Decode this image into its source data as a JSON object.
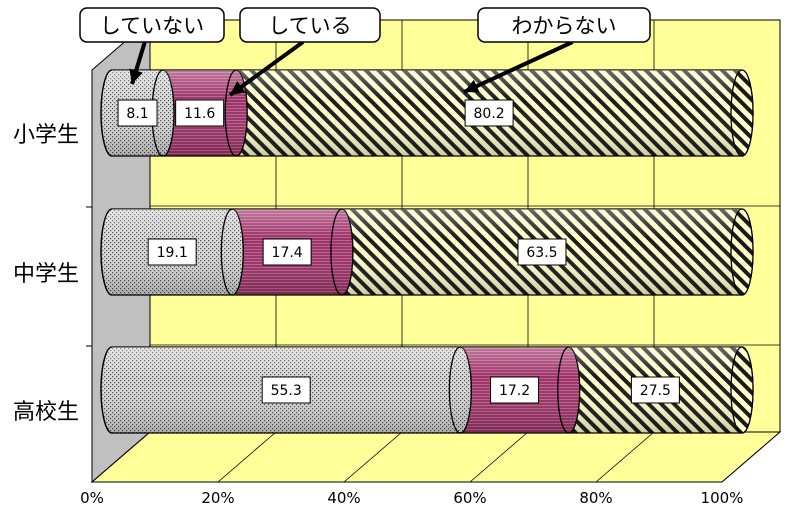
{
  "chart_data": {
    "type": "bar",
    "orientation": "horizontal",
    "stacked": true,
    "percent_stacked": true,
    "three_d": true,
    "categories": [
      "小学生",
      "中学生",
      "高校生"
    ],
    "series": [
      {
        "name": "していない",
        "values": [
          8.1,
          19.1,
          55.3
        ],
        "color": "#d4d4d4",
        "pattern": "dots"
      },
      {
        "name": "している",
        "values": [
          11.6,
          17.4,
          17.2
        ],
        "color": "#993366",
        "pattern": "horizontal-lines"
      },
      {
        "name": "わからない",
        "values": [
          80.2,
          63.5,
          27.5
        ],
        "color": "#ffffcc",
        "pattern": "diagonal-stripes"
      }
    ],
    "x_ticks": [
      "0%",
      "20%",
      "40%",
      "60%",
      "80%",
      "100%"
    ],
    "xlim": [
      0,
      100
    ],
    "grid": true,
    "legend": "top, as callouts with arrows",
    "wall_color": "#ffff99",
    "side_wall_color": "#c0c0c0",
    "floor_color": "#ffff99"
  }
}
